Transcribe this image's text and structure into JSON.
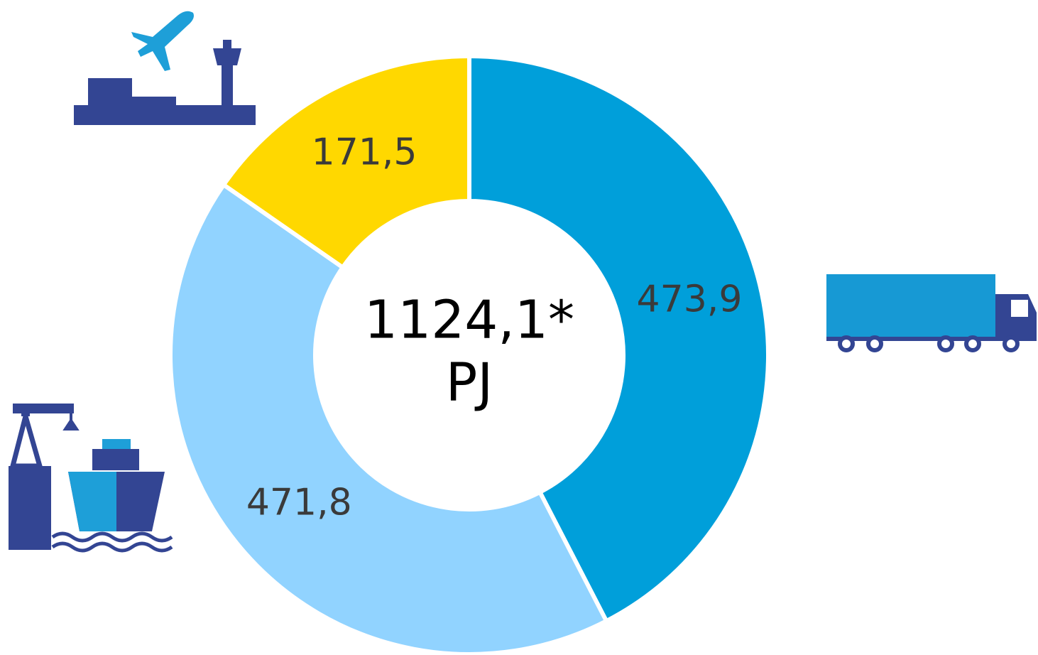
{
  "chart_data": {
    "type": "donut",
    "values": [
      473.9,
      471.8,
      171.5
    ],
    "value_labels": [
      "473,9",
      "471,8",
      "171,5"
    ],
    "colors": [
      "#009fda",
      "#91d3ff",
      "#ffd800"
    ],
    "center_text": [
      "1124,1*",
      "PJ"
    ]
  }
}
